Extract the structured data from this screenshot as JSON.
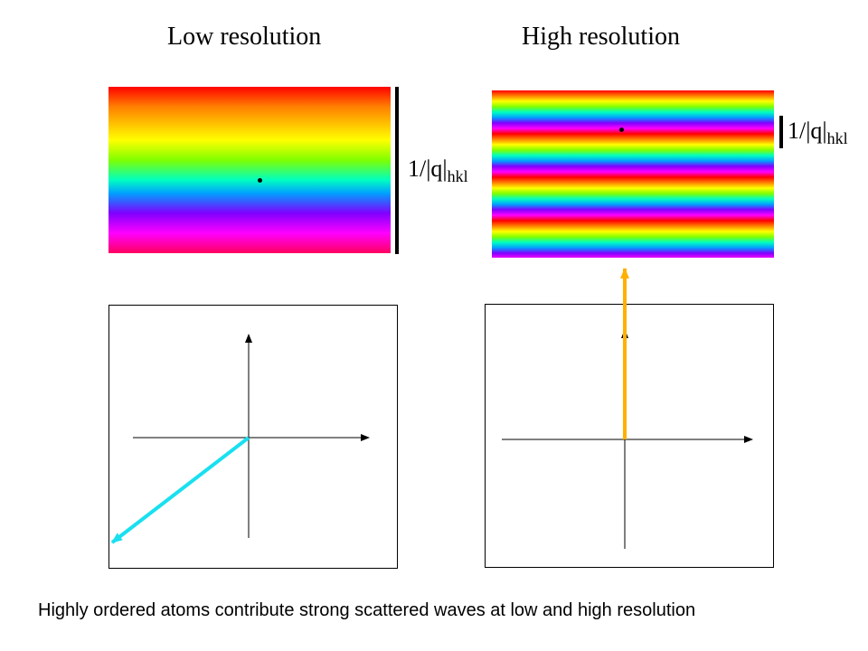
{
  "titles": {
    "low": "Low resolution",
    "high": "High resolution"
  },
  "period_label": {
    "low": {
      "text": "1/|q|",
      "subscript": "hkl"
    },
    "high": {
      "text": "1/|q|",
      "subscript": "hkl"
    }
  },
  "caption": "Highly ordered atoms contribute strong scattered waves at low and high resolution",
  "colors": {
    "low_vector": "#19e0f0",
    "high_vector": "#ffb000",
    "axes": "#000000"
  }
}
